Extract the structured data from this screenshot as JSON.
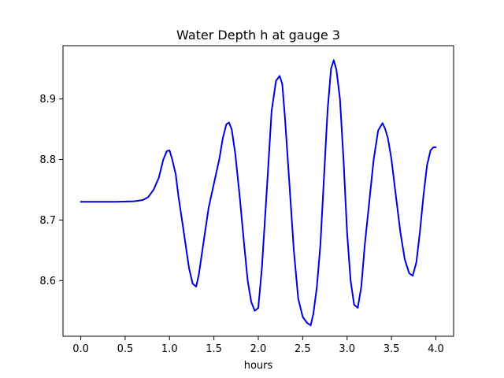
{
  "chart_data": {
    "type": "line",
    "title": "Water Depth h at gauge 3",
    "xlabel": "hours",
    "ylabel": "",
    "xlim": [
      -0.2,
      4.2
    ],
    "ylim": [
      8.508,
      8.988
    ],
    "xticks": [
      0.0,
      0.5,
      1.0,
      1.5,
      2.0,
      2.5,
      3.0,
      3.5,
      4.0
    ],
    "xtick_labels": [
      "0.0",
      "0.5",
      "1.0",
      "1.5",
      "2.0",
      "2.5",
      "3.0",
      "3.5",
      "4.0"
    ],
    "yticks": [
      8.6,
      8.7,
      8.8,
      8.9
    ],
    "ytick_labels": [
      "8.6",
      "8.7",
      "8.8",
      "8.9"
    ],
    "grid": false,
    "colors": {
      "line": "#0000dd",
      "axes": "#000000",
      "background": "#ffffff"
    },
    "series": [
      {
        "x": [
          0.0,
          0.2,
          0.4,
          0.6,
          0.7,
          0.76,
          0.82,
          0.88,
          0.93,
          0.97,
          1.0,
          1.03,
          1.07,
          1.1,
          1.14,
          1.18,
          1.22,
          1.26,
          1.3,
          1.33,
          1.38,
          1.44,
          1.5,
          1.56,
          1.6,
          1.64,
          1.67,
          1.7,
          1.74,
          1.79,
          1.84,
          1.88,
          1.92,
          1.96,
          2.0,
          2.04,
          2.1,
          2.15,
          2.2,
          2.24,
          2.27,
          2.3,
          2.35,
          2.4,
          2.45,
          2.5,
          2.55,
          2.59,
          2.62,
          2.66,
          2.7,
          2.74,
          2.78,
          2.82,
          2.85,
          2.88,
          2.92,
          2.96,
          3.0,
          3.04,
          3.08,
          3.12,
          3.16,
          3.2,
          3.25,
          3.3,
          3.35,
          3.4,
          3.43,
          3.46,
          3.5,
          3.55,
          3.6,
          3.65,
          3.7,
          3.74,
          3.78,
          3.82,
          3.86,
          3.9,
          3.94,
          3.97,
          4.0
        ],
        "y": [
          8.73,
          8.73,
          8.73,
          8.731,
          8.733,
          8.738,
          8.75,
          8.77,
          8.8,
          8.814,
          8.815,
          8.8,
          8.775,
          8.74,
          8.7,
          8.66,
          8.62,
          8.595,
          8.59,
          8.61,
          8.66,
          8.72,
          8.76,
          8.8,
          8.835,
          8.858,
          8.861,
          8.85,
          8.81,
          8.74,
          8.66,
          8.6,
          8.565,
          8.55,
          8.555,
          8.62,
          8.76,
          8.88,
          8.93,
          8.938,
          8.925,
          8.87,
          8.76,
          8.65,
          8.57,
          8.54,
          8.53,
          8.526,
          8.545,
          8.59,
          8.66,
          8.77,
          8.88,
          8.95,
          8.964,
          8.948,
          8.9,
          8.8,
          8.68,
          8.6,
          8.56,
          8.555,
          8.59,
          8.66,
          8.73,
          8.8,
          8.848,
          8.86,
          8.85,
          8.835,
          8.8,
          8.74,
          8.68,
          8.635,
          8.612,
          8.608,
          8.63,
          8.68,
          8.74,
          8.79,
          8.815,
          8.82,
          8.82
        ]
      }
    ]
  }
}
